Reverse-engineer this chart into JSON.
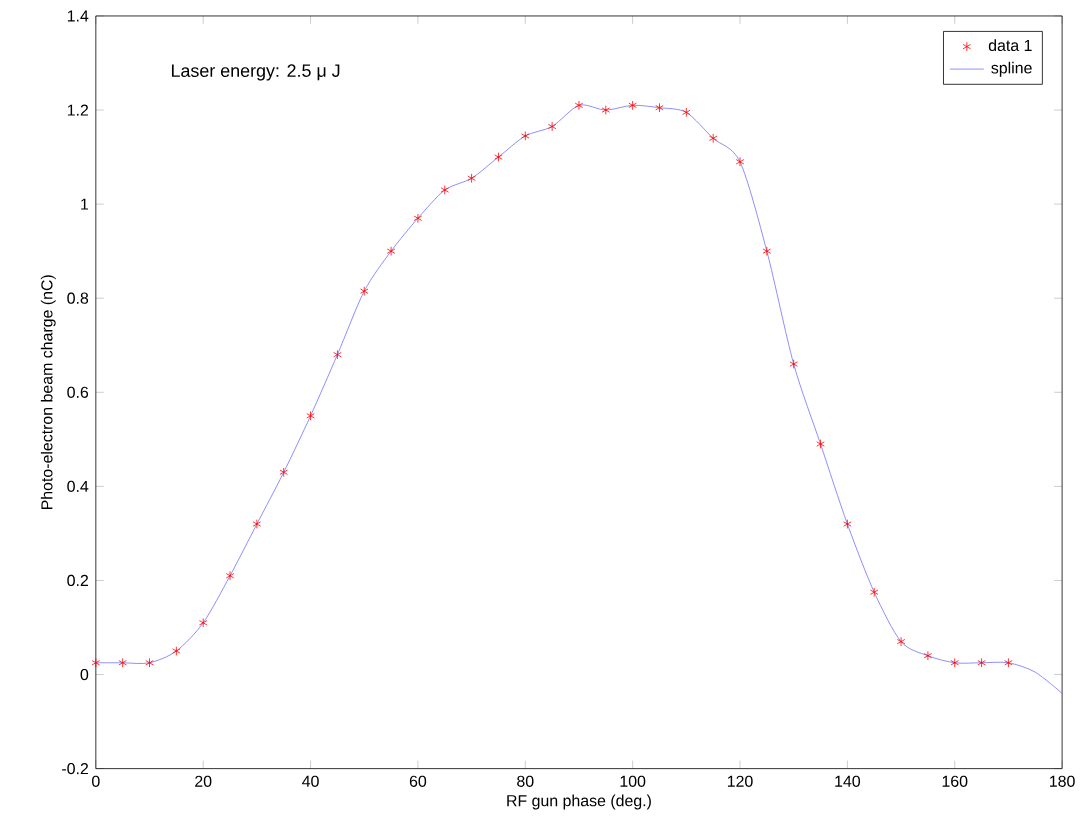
{
  "chart_data": {
    "type": "line",
    "xlabel": "RF gun phase (deg.)",
    "ylabel": "Photo-electron beam charge (nC)",
    "annotations": [
      "Laser energy: 2.5 μ J"
    ],
    "xlim": [
      0,
      180
    ],
    "xticks": [
      0,
      20,
      40,
      60,
      80,
      100,
      120,
      140,
      160,
      180
    ],
    "ylim": [
      -0.2,
      1.4
    ],
    "yticks": [
      -0.2,
      0,
      0.2,
      0.4,
      0.6,
      0.8,
      1,
      1.2,
      1.4
    ],
    "legend": "top right",
    "grid": false,
    "series": [
      {
        "name": "data 1",
        "type": "scatter",
        "marker": "cross",
        "color": "#ff0000",
        "x": [
          0,
          5,
          10,
          15,
          20,
          25,
          30,
          35,
          40,
          45,
          50,
          55,
          60,
          65,
          70,
          75,
          80,
          85,
          90,
          95,
          100,
          105,
          110,
          115,
          120,
          125,
          130,
          135,
          140,
          145,
          150,
          155,
          160,
          165,
          170
        ],
        "values": [
          0.025,
          0.025,
          0.025,
          0.05,
          0.11,
          0.21,
          0.32,
          0.43,
          0.55,
          0.68,
          0.815,
          0.9,
          0.97,
          1.03,
          1.055,
          1.1,
          1.145,
          1.165,
          1.21,
          1.2,
          1.21,
          1.205,
          1.195,
          1.14,
          1.09,
          0.9,
          0.66,
          0.49,
          0.32,
          0.175,
          0.07,
          0.04,
          0.025,
          0.025,
          0.025
        ]
      },
      {
        "name": "spline",
        "marker": "none",
        "line_style": "solid",
        "color": "#7070ff",
        "x": [
          0,
          5,
          10,
          15,
          20,
          25,
          30,
          35,
          40,
          45,
          50,
          55,
          60,
          65,
          70,
          75,
          80,
          85,
          90,
          95,
          100,
          105,
          110,
          115,
          120,
          125,
          130,
          135,
          140,
          145,
          150,
          155,
          160,
          165,
          170,
          175,
          180
        ],
        "values": [
          0.025,
          0.025,
          0.025,
          0.05,
          0.11,
          0.21,
          0.32,
          0.43,
          0.55,
          0.68,
          0.815,
          0.9,
          0.97,
          1.03,
          1.055,
          1.1,
          1.145,
          1.165,
          1.21,
          1.2,
          1.21,
          1.205,
          1.195,
          1.14,
          1.09,
          0.9,
          0.66,
          0.49,
          0.32,
          0.175,
          0.07,
          0.04,
          0.025,
          0.025,
          0.025,
          0.005,
          -0.04
        ]
      }
    ]
  }
}
